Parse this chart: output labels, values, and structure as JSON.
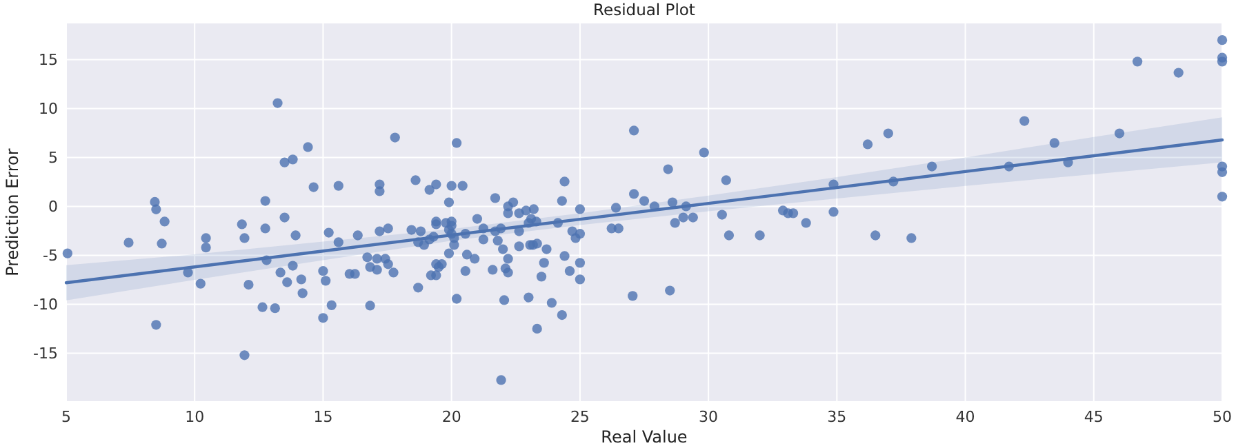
{
  "chart_data": {
    "type": "scatter",
    "title": "Residual Plot",
    "xlabel": "Real Value",
    "ylabel": "Prediction Error",
    "xlim": [
      5,
      50
    ],
    "ylim": [
      -19.9,
      18.7
    ],
    "xticks": [
      5,
      10,
      15,
      20,
      25,
      30,
      35,
      40,
      45,
      50
    ],
    "yticks": [
      -15,
      -10,
      -5,
      0,
      5,
      10,
      15
    ],
    "grid": true,
    "series": [
      {
        "color": "#4c72b0",
        "marker": "circle",
        "x": [
          5.05,
          7.43,
          8.45,
          8.5,
          8.83,
          8.72,
          8.5,
          9.74,
          10.23,
          10.44,
          10.44,
          11.84,
          11.94,
          12.1,
          11.94,
          12.75,
          12.75,
          12.8,
          12.64,
          13.13,
          13.23,
          13.5,
          13.82,
          13.5,
          13.34,
          13.6,
          13.82,
          13.93,
          14.15,
          14.2,
          14.41,
          14.63,
          15.0,
          15.1,
          15.0,
          15.33,
          15.22,
          15.6,
          15.6,
          16.35,
          16.03,
          16.24,
          16.72,
          16.83,
          17.1,
          17.1,
          17.2,
          17.2,
          17.2,
          17.42,
          17.53,
          17.53,
          17.74,
          16.83,
          17.8,
          18.44,
          18.6,
          18.7,
          18.8,
          18.93,
          18.7,
          19.14,
          19.4,
          19.14,
          19.3,
          19.4,
          19.4,
          19.4,
          19.2,
          19.4,
          19.62,
          19.5,
          19.9,
          20.0,
          20.2,
          19.78,
          20.0,
          19.9,
          20.0,
          20.1,
          20.0,
          20.1,
          19.9,
          20.2,
          20.43,
          20.54,
          20.6,
          20.54,
          20.9,
          21.0,
          21.24,
          21.24,
          21.6,
          21.7,
          21.7,
          21.8,
          21.92,
          22.0,
          22.2,
          22.1,
          22.2,
          22.05,
          21.93,
          22.2,
          22.2,
          22.4,
          22.63,
          22.63,
          22.63,
          22.9,
          23.0,
          23.1,
          23.2,
          23.3,
          23.06,
          23.17,
          23.33,
          23.0,
          23.33,
          23.6,
          23.5,
          23.7,
          23.9,
          24.14,
          24.3,
          24.4,
          24.3,
          24.4,
          24.6,
          24.7,
          24.83,
          25.0,
          25.0,
          25.0,
          25.0,
          26.23,
          26.5,
          26.4,
          27.1,
          27.1,
          27.05,
          27.5,
          27.9,
          28.43,
          28.6,
          28.7,
          28.5,
          29.02,
          29.13,
          29.4,
          29.83,
          30.53,
          30.69,
          30.8,
          32.0,
          32.9,
          33.1,
          33.3,
          33.8,
          34.87,
          34.87,
          36.2,
          36.5,
          37.0,
          37.2,
          37.9,
          38.7,
          41.7,
          42.3,
          43.47,
          44.0,
          46.0,
          46.7,
          48.3,
          50,
          50,
          50,
          50,
          50,
          50
        ],
        "values": [
          -4.8,
          -3.7,
          0.46,
          -0.3,
          -1.55,
          -3.8,
          -12.1,
          -6.76,
          -7.9,
          -3.24,
          -4.2,
          -1.83,
          -3.24,
          -8.0,
          -15.2,
          0.56,
          -2.25,
          -5.5,
          -10.3,
          -10.4,
          10.56,
          4.5,
          4.8,
          -1.13,
          -6.76,
          -7.75,
          -6.06,
          -2.96,
          -7.46,
          -8.87,
          6.06,
          1.97,
          -6.6,
          -7.6,
          -11.4,
          -10.1,
          -2.68,
          2.1,
          -3.66,
          -2.96,
          -6.9,
          -6.9,
          -5.2,
          -6.2,
          -5.35,
          -6.48,
          2.25,
          1.55,
          -2.54,
          -5.35,
          -2.25,
          -5.9,
          -6.76,
          -10.14,
          7.04,
          -2.4,
          2.68,
          -3.66,
          -2.54,
          -3.94,
          -8.3,
          1.69,
          2.25,
          -3.38,
          -3.1,
          -1.55,
          -1.83,
          -5.9,
          -7.04,
          -7.04,
          -5.9,
          -6.2,
          0.42,
          2.1,
          6.48,
          -1.69,
          -1.55,
          -2.4,
          -2.8,
          -3.24,
          -1.97,
          -3.94,
          -4.8,
          -9.44,
          2.1,
          -2.8,
          -4.93,
          -6.6,
          -5.35,
          -1.27,
          -2.25,
          -3.38,
          -6.48,
          0.85,
          -2.54,
          -3.5,
          -2.25,
          -4.37,
          -5.35,
          -6.34,
          -6.76,
          -9.58,
          -17.75,
          0,
          -0.7,
          0.42,
          -0.7,
          -2.54,
          -4.08,
          -0.42,
          -1.69,
          -1.27,
          -0.28,
          -1.55,
          -3.94,
          -3.94,
          -3.8,
          -9.3,
          -12.5,
          -5.77,
          -7.18,
          -4.37,
          -9.86,
          -1.69,
          0.56,
          2.54,
          -11.1,
          -5.07,
          -6.6,
          -2.54,
          -3.24,
          -2.8,
          -0.28,
          -5.77,
          -7.46,
          -2.25,
          -2.25,
          -0.14,
          7.75,
          1.27,
          -9.15,
          0.56,
          0,
          3.8,
          0.42,
          -1.69,
          -8.6,
          -1.13,
          0,
          -1.13,
          5.5,
          -0.85,
          2.68,
          -2.96,
          -2.96,
          -0.42,
          -0.7,
          -0.7,
          -1.69,
          2.25,
          -0.56,
          6.34,
          -2.96,
          7.46,
          2.54,
          -3.24,
          4.08,
          4.08,
          8.73,
          6.48,
          4.5,
          7.46,
          14.8,
          13.66,
          17.0,
          15.2,
          14.8,
          4.08,
          3.5,
          1.0
        ]
      },
      {
        "type": "line",
        "color": "#4c72b0",
        "line_style": "solid",
        "marker": "none",
        "x": [
          5,
          10,
          15,
          20,
          25,
          30,
          35,
          40,
          45,
          50
        ],
        "values": [
          -7.8,
          -6.18,
          -4.56,
          -2.93,
          -1.31,
          0.31,
          1.93,
          3.56,
          5.18,
          6.8
        ],
        "lower": [
          -9.6,
          -7.5,
          -5.5,
          -3.5,
          -1.9,
          -0.5,
          0.8,
          2.1,
          3.3,
          4.5
        ],
        "upper": [
          -6.0,
          -4.9,
          -3.6,
          -2.3,
          -0.7,
          1.1,
          3.0,
          5.0,
          7.1,
          9.1
        ]
      }
    ]
  }
}
